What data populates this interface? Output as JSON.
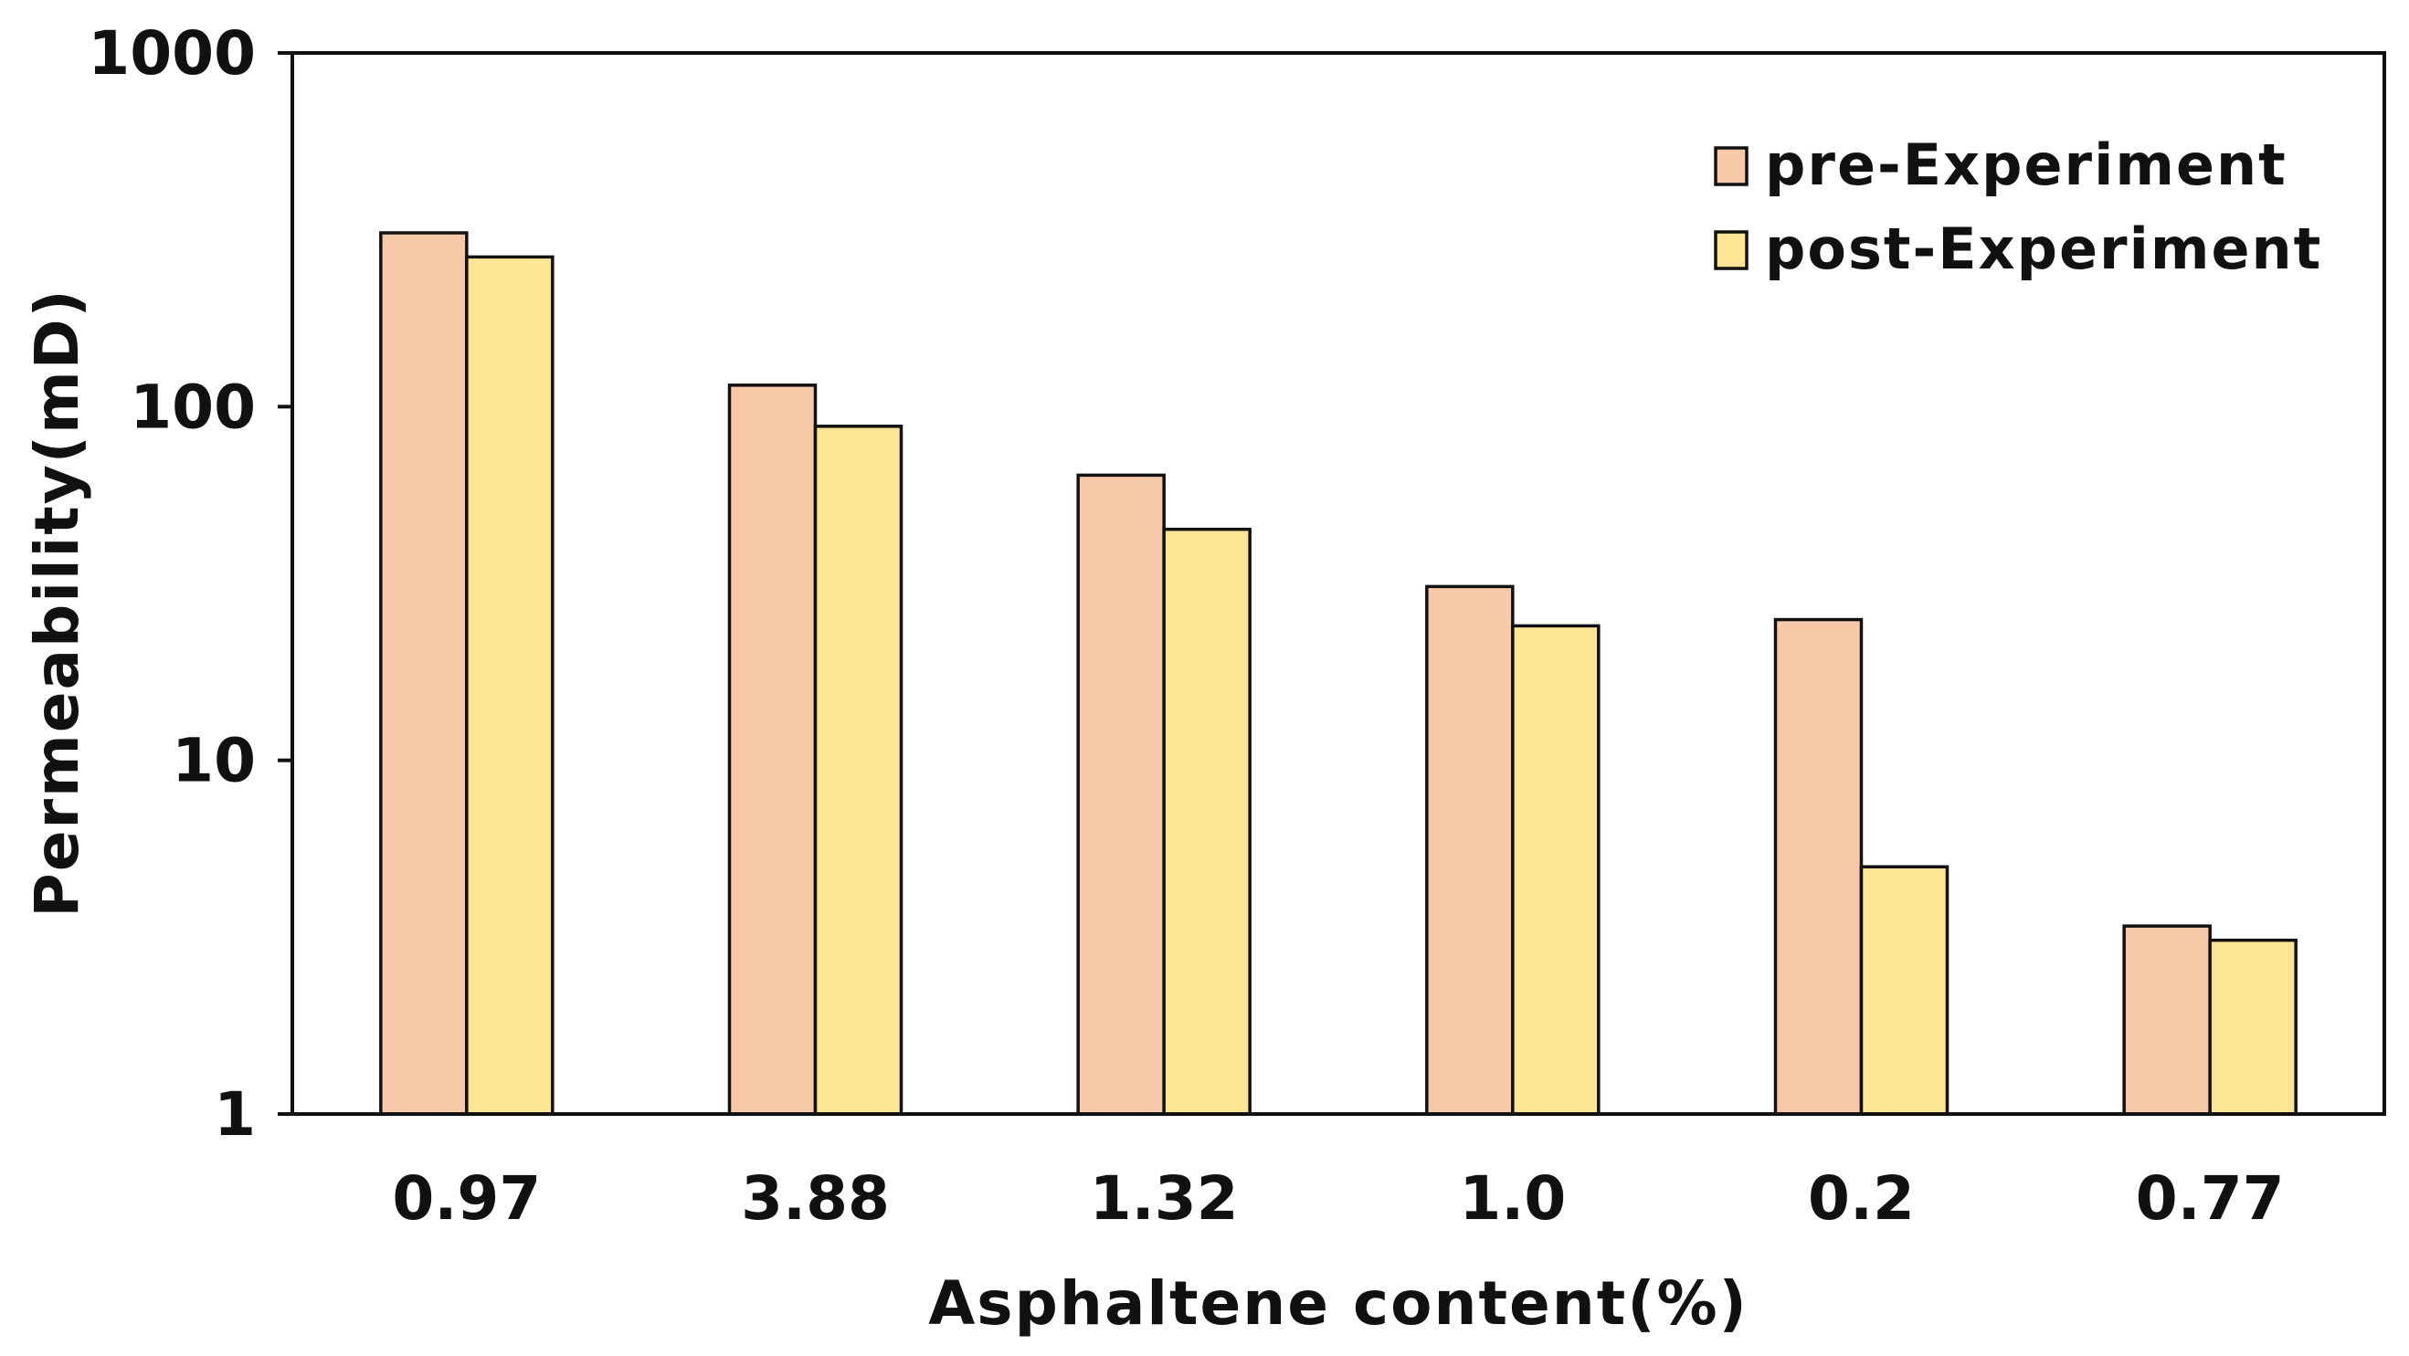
{
  "chart_data": {
    "type": "bar",
    "title": "",
    "xlabel": "Asphaltene content(%)",
    "ylabel": "Permeability(mD)",
    "categories": [
      "0.97",
      "3.88",
      "1.32",
      "1.0",
      "0.2",
      "0.77"
    ],
    "series": [
      {
        "name": "pre-Experiment",
        "values": [
          310,
          115,
          64,
          31,
          25,
          3.4
        ]
      },
      {
        "name": "post-Experiment",
        "values": [
          265,
          88,
          45,
          24,
          5.0,
          3.1
        ]
      }
    ],
    "yscale": "log",
    "ylim": [
      1,
      1000
    ],
    "yticks": [
      {
        "value": 1,
        "label": "1"
      },
      {
        "value": 10,
        "label": "10"
      },
      {
        "value": 100,
        "label": "100"
      },
      {
        "value": 1000,
        "label": "1000"
      }
    ],
    "grid": false,
    "legend_position": "top-right",
    "colors": {
      "pre-Experiment": "#F7C9A8",
      "post-Experiment": "#FDE596",
      "outline": "#111111"
    }
  }
}
